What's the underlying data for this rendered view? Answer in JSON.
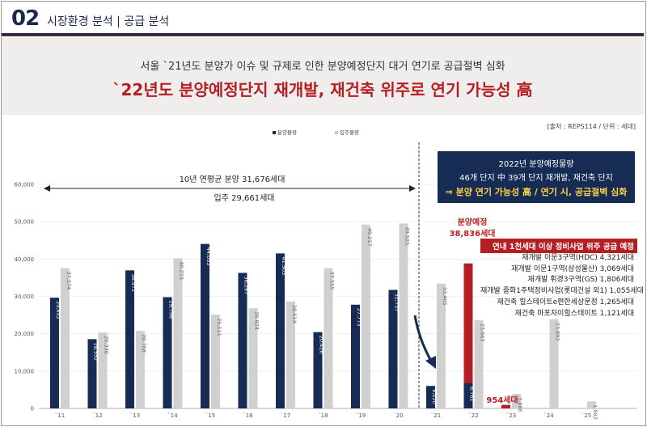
{
  "header": {
    "number": "02",
    "title": "시장환경 분석 | 공급 분석"
  },
  "banner": {
    "subtitle": "서울 `21년도 분양가 이슈 및 규제로 인한 분양예정단지 대거 연기로 공급절벽 심화",
    "headline": "`22년도 분양예정단지 재개발, 재건축 위주로 연기 가능성 高"
  },
  "source": "[출처 : REPS114 / 단위 : 세대]",
  "annotations": {
    "avg_supply": "10년 연평균 분양 31,676세대",
    "avg_move_in": "입주 29,661세대",
    "planned_label": "분양예정",
    "planned_value": "38,836세대",
    "value_954": "954세대"
  },
  "callout": {
    "line1": "2022년 분양예정물량",
    "line2": "46개 단지 中 39개 단지 재개발, 재건축 단지",
    "line3": "⇒ 분양 연기 가능성 高 / 연기 시, 공급절벽 심화"
  },
  "project_list": {
    "title": "연내 1천세대 이상 정비사업 위주 공급 예정",
    "items": [
      "재개발 이문3구역(HDC) 4,321세대",
      "재개발 이문1구역(삼성물산) 3,069세대",
      "재개발 휘경3구역(GS) 1,806세대",
      "재개발 중화1주택정비사업(롯데건설 외1) 1,055세대",
      "재건축 힐스테이트e편한세상문정 1,265세대",
      "재건축 마포자이힐스테이트 1,121세대"
    ]
  },
  "colors": {
    "navy": "#172c55",
    "gray": "#d0d0d0",
    "red": "#b51f24"
  },
  "chart_data": {
    "type": "bar",
    "title": "",
    "xlabel": "",
    "ylabel": "",
    "ylim": [
      0,
      60000
    ],
    "yticks": [
      "0",
      "10,000",
      "20,000",
      "30,000",
      "40,000",
      "50,000",
      "60,000"
    ],
    "legend": [
      "분양물량",
      "입주물량"
    ],
    "legend_position": "top-center",
    "categories": [
      "`11",
      "`12",
      "`13",
      "`14",
      "`15",
      "`16",
      "`17",
      "`18",
      "`19",
      "`20",
      "`21",
      "`22",
      "`23",
      "`24",
      "`25"
    ],
    "series": [
      {
        "name": "분양물량",
        "values": [
          29652,
          18552,
          36971,
          29796,
          44053,
          36297,
          41503,
          20426,
          27773,
          31737,
          6020,
          6761,
          null,
          null,
          null
        ],
        "labels": [
          "29,652",
          "18,552",
          "36,971",
          "29,796",
          "44,053",
          "36,297",
          "41,503",
          "20,426",
          "27,773",
          "31,737",
          "6,020",
          "6,761",
          "",
          "",
          ""
        ]
      },
      {
        "name": "입주물량",
        "values": [
          37574,
          20336,
          20768,
          40215,
          25111,
          26824,
          28614,
          37555,
          49217,
          49525,
          33405,
          23663,
          3886,
          23893,
          1882
        ],
        "labels": [
          "37,574",
          "20,336",
          "20,768",
          "40,215",
          "25,111",
          "26,824",
          "28,614",
          "37,555",
          "49,217",
          "49,525",
          "33,405",
          "23,663",
          "3,886",
          "23,893",
          "1,882"
        ]
      },
      {
        "name": "분양예정",
        "values": [
          null,
          null,
          null,
          null,
          null,
          null,
          null,
          null,
          null,
          null,
          null,
          38836,
          954,
          null,
          null
        ]
      }
    ]
  }
}
